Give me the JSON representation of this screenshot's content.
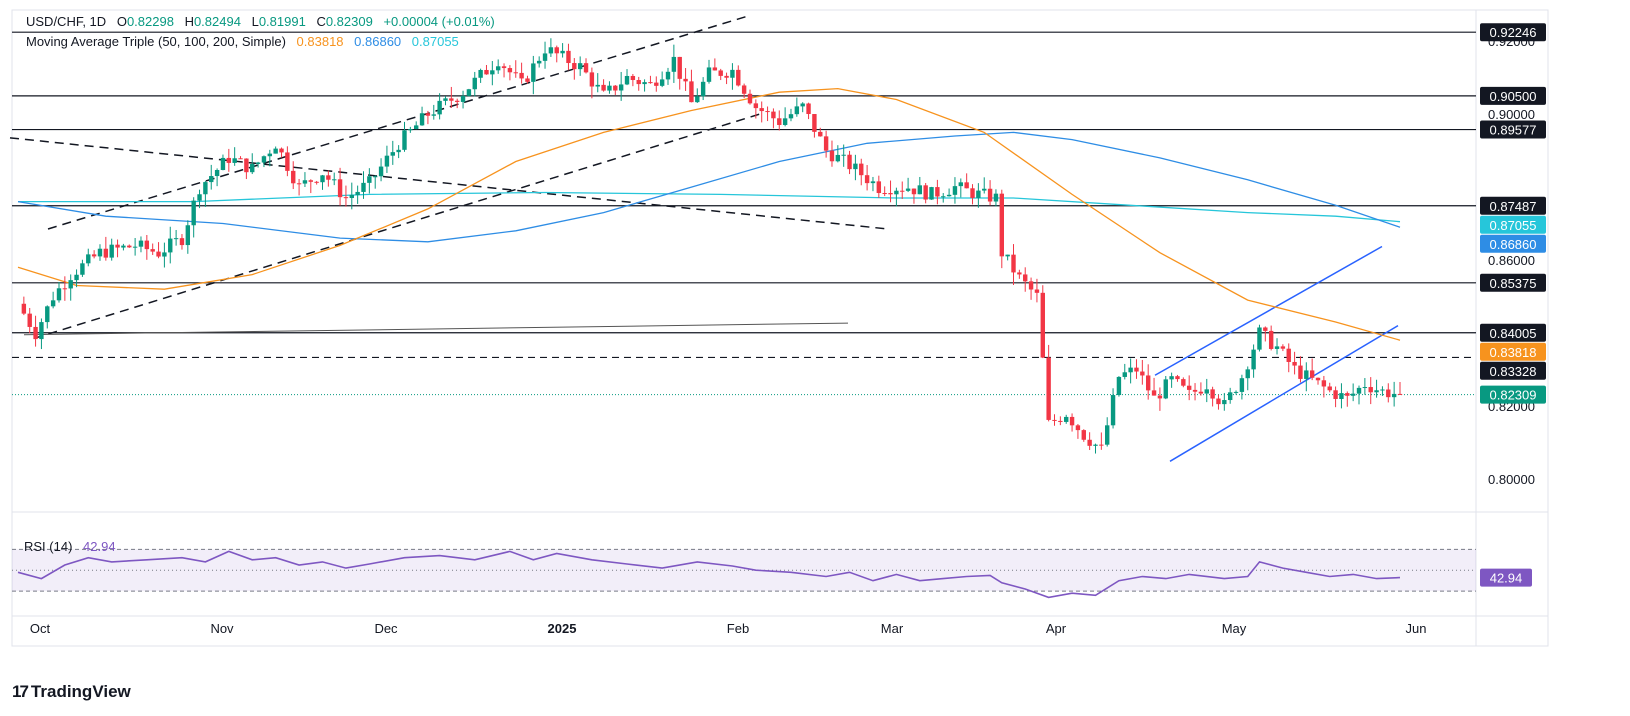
{
  "header": {
    "symbol": "USD/CHF, 1D",
    "open_label": "O",
    "open": "0.82298",
    "high_label": "H",
    "high": "0.82494",
    "low_label": "L",
    "low": "0.81991",
    "close_label": "C",
    "close": "0.82309",
    "change": "+0.00004 (+0.01%)",
    "ma_label": "Moving Average Triple (50, 100, 200, Simple)",
    "ma50": "0.83818",
    "ma100": "0.86860",
    "ma200": "0.87055"
  },
  "rsi": {
    "label": "RSI (14)",
    "value": "42.94"
  },
  "logo_text": "TradingView",
  "colors": {
    "up": "#089981",
    "down": "#f23645",
    "ma50": "#f7931e",
    "ma100": "#2e8de5",
    "ma200": "#26c6da",
    "rsi": "#7e57c2",
    "channel": "#2962ff"
  },
  "chart_data": {
    "type": "candlestick",
    "ylim": [
      0.792,
      0.928
    ],
    "y_ticks": [
      "0.92000",
      "0.90000",
      "0.86000",
      "0.84000",
      "0.82000",
      "0.80000"
    ],
    "x_ticks": [
      {
        "label": "Oct",
        "bold": false
      },
      {
        "label": "Nov",
        "bold": false
      },
      {
        "label": "Dec",
        "bold": false
      },
      {
        "label": "2025",
        "bold": true
      },
      {
        "label": "Feb",
        "bold": false
      },
      {
        "label": "Mar",
        "bold": false
      },
      {
        "label": "Apr",
        "bold": false
      },
      {
        "label": "May",
        "bold": false
      },
      {
        "label": "Jun",
        "bold": false
      }
    ],
    "tags": [
      {
        "label": "0.92246",
        "value": 0.92246,
        "style": "dark"
      },
      {
        "label": "0.90500",
        "value": 0.905,
        "style": "dark"
      },
      {
        "label": "0.89577",
        "value": 0.89577,
        "style": "dark"
      },
      {
        "label": "0.87487",
        "value": 0.87487,
        "style": "dark"
      },
      {
        "label": "0.87055",
        "value": 0.87055,
        "style": "ma200"
      },
      {
        "label": "0.86860",
        "value": 0.8686,
        "style": "ma100"
      },
      {
        "label": "0.85375",
        "value": 0.85375,
        "style": "dark"
      },
      {
        "label": "0.84005",
        "value": 0.84005,
        "style": "dark"
      },
      {
        "label": "0.83818",
        "value": 0.83818,
        "style": "ma50"
      },
      {
        "label": "0.83328",
        "value": 0.83328,
        "style": "dark"
      },
      {
        "label": "0.82309",
        "value": 0.82309,
        "style": "last"
      }
    ],
    "levels": [
      {
        "value": 0.92246,
        "dashed": false
      },
      {
        "value": 0.905,
        "dashed": false
      },
      {
        "value": 0.89577,
        "dashed": false
      },
      {
        "value": 0.87487,
        "dashed": false
      },
      {
        "value": 0.85375,
        "dashed": false
      },
      {
        "value": 0.84005,
        "dashed": false
      },
      {
        "value": 0.83328,
        "dashed": true
      }
    ],
    "last_close": 0.82309,
    "candle_waypoints": [
      [
        0,
        0.848
      ],
      [
        3,
        0.84
      ],
      [
        6,
        0.85
      ],
      [
        9,
        0.856
      ],
      [
        14,
        0.862
      ],
      [
        20,
        0.864
      ],
      [
        24,
        0.862
      ],
      [
        28,
        0.866
      ],
      [
        31,
        0.88
      ],
      [
        36,
        0.888
      ],
      [
        40,
        0.885
      ],
      [
        44,
        0.892
      ],
      [
        48,
        0.88
      ],
      [
        52,
        0.884
      ],
      [
        56,
        0.877
      ],
      [
        60,
        0.881
      ],
      [
        65,
        0.892
      ],
      [
        70,
        0.9
      ],
      [
        76,
        0.906
      ],
      [
        82,
        0.915
      ],
      [
        86,
        0.908
      ],
      [
        90,
        0.918
      ],
      [
        96,
        0.913
      ],
      [
        100,
        0.905
      ],
      [
        104,
        0.91
      ],
      [
        108,
        0.908
      ],
      [
        112,
        0.915
      ],
      [
        115,
        0.903
      ],
      [
        118,
        0.911
      ],
      [
        122,
        0.912
      ],
      [
        126,
        0.902
      ],
      [
        130,
        0.898
      ],
      [
        134,
        0.902
      ],
      [
        138,
        0.89
      ],
      [
        142,
        0.886
      ],
      [
        147,
        0.88
      ],
      [
        152,
        0.88
      ],
      [
        156,
        0.878
      ],
      [
        160,
        0.88
      ],
      [
        164,
        0.878
      ],
      [
        167,
        0.877
      ],
      [
        168,
        0.862
      ],
      [
        171,
        0.855
      ],
      [
        174,
        0.85
      ],
      [
        176,
        0.815
      ],
      [
        179,
        0.818
      ],
      [
        182,
        0.812
      ],
      [
        185,
        0.808
      ],
      [
        188,
        0.828
      ],
      [
        191,
        0.83
      ],
      [
        194,
        0.822
      ],
      [
        197,
        0.827
      ],
      [
        200,
        0.823
      ],
      [
        203,
        0.826
      ],
      [
        206,
        0.82
      ],
      [
        209,
        0.828
      ],
      [
        212,
        0.84
      ],
      [
        215,
        0.836
      ],
      [
        218,
        0.83
      ],
      [
        221,
        0.827
      ],
      [
        224,
        0.824
      ],
      [
        227,
        0.822
      ],
      [
        230,
        0.826
      ],
      [
        233,
        0.824
      ],
      [
        236,
        0.8231
      ]
    ],
    "ma50_points": [
      [
        0,
        0.858
      ],
      [
        10,
        0.853
      ],
      [
        25,
        0.852
      ],
      [
        40,
        0.856
      ],
      [
        55,
        0.864
      ],
      [
        70,
        0.874
      ],
      [
        85,
        0.887
      ],
      [
        100,
        0.895
      ],
      [
        115,
        0.901
      ],
      [
        130,
        0.906
      ],
      [
        140,
        0.907
      ],
      [
        150,
        0.904
      ],
      [
        165,
        0.895
      ],
      [
        180,
        0.878
      ],
      [
        195,
        0.862
      ],
      [
        210,
        0.849
      ],
      [
        225,
        0.843
      ],
      [
        236,
        0.838
      ]
    ],
    "ma100_points": [
      [
        0,
        0.876
      ],
      [
        15,
        0.872
      ],
      [
        35,
        0.87
      ],
      [
        55,
        0.866
      ],
      [
        70,
        0.865
      ],
      [
        85,
        0.868
      ],
      [
        100,
        0.873
      ],
      [
        115,
        0.88
      ],
      [
        130,
        0.887
      ],
      [
        145,
        0.892
      ],
      [
        160,
        0.894
      ],
      [
        170,
        0.895
      ],
      [
        180,
        0.893
      ],
      [
        195,
        0.888
      ],
      [
        210,
        0.882
      ],
      [
        225,
        0.875
      ],
      [
        236,
        0.869
      ]
    ],
    "ma200_points": [
      [
        0,
        0.876
      ],
      [
        30,
        0.876
      ],
      [
        60,
        0.878
      ],
      [
        90,
        0.8785
      ],
      [
        120,
        0.878
      ],
      [
        150,
        0.877
      ],
      [
        170,
        0.877
      ],
      [
        190,
        0.875
      ],
      [
        210,
        0.873
      ],
      [
        225,
        0.872
      ],
      [
        236,
        0.8705
      ]
    ],
    "rsi_points": [
      [
        0,
        48
      ],
      [
        4,
        42
      ],
      [
        8,
        55
      ],
      [
        12,
        62
      ],
      [
        16,
        58
      ],
      [
        22,
        60
      ],
      [
        28,
        62
      ],
      [
        32,
        58
      ],
      [
        36,
        68
      ],
      [
        40,
        60
      ],
      [
        44,
        62
      ],
      [
        48,
        55
      ],
      [
        52,
        58
      ],
      [
        56,
        52
      ],
      [
        60,
        56
      ],
      [
        66,
        62
      ],
      [
        72,
        64
      ],
      [
        78,
        60
      ],
      [
        84,
        68
      ],
      [
        88,
        60
      ],
      [
        92,
        66
      ],
      [
        98,
        60
      ],
      [
        104,
        56
      ],
      [
        110,
        52
      ],
      [
        116,
        58
      ],
      [
        122,
        54
      ],
      [
        126,
        50
      ],
      [
        132,
        48
      ],
      [
        138,
        44
      ],
      [
        142,
        48
      ],
      [
        146,
        40
      ],
      [
        150,
        46
      ],
      [
        154,
        40
      ],
      [
        158,
        42
      ],
      [
        162,
        44
      ],
      [
        166,
        45
      ],
      [
        168,
        38
      ],
      [
        172,
        32
      ],
      [
        176,
        24
      ],
      [
        180,
        28
      ],
      [
        184,
        26
      ],
      [
        188,
        40
      ],
      [
        192,
        44
      ],
      [
        196,
        42
      ],
      [
        200,
        46
      ],
      [
        206,
        42
      ],
      [
        210,
        44
      ],
      [
        212,
        58
      ],
      [
        216,
        52
      ],
      [
        220,
        48
      ],
      [
        224,
        44
      ],
      [
        228,
        46
      ],
      [
        232,
        42
      ],
      [
        236,
        42.94
      ]
    ]
  }
}
